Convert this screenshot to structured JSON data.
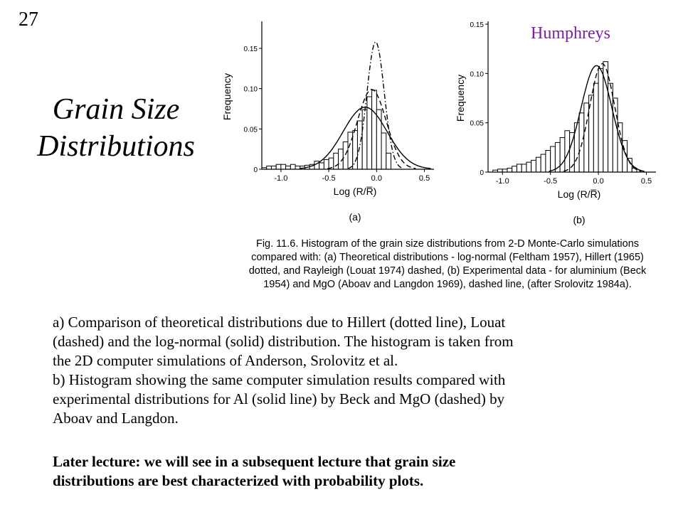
{
  "slide_number": "27",
  "title_lines": [
    "Grain Size",
    "Distributions"
  ],
  "author": "Humphreys",
  "chart_data": [
    {
      "type": "bar",
      "panel": "(a)",
      "title": "",
      "xlabel": "Log (R/R̅)",
      "ylabel": "Frequency",
      "xlim": [
        -1.2,
        0.6
      ],
      "ylim": [
        0,
        0.18
      ],
      "xticks": [
        -1.0,
        -0.5,
        0.0,
        0.5
      ],
      "xtick_labels": [
        "-1.0",
        "-0.5",
        "0.0",
        "0.5"
      ],
      "yticks": [
        0,
        0.05,
        0.1,
        0.15
      ],
      "ytick_labels": [
        "0",
        "0.05",
        "0.10",
        "0.15"
      ],
      "bin_width": 0.05,
      "bin_starts": [
        -1.2,
        -1.15,
        -1.1,
        -1.05,
        -1.0,
        -0.95,
        -0.9,
        -0.85,
        -0.8,
        -0.75,
        -0.7,
        -0.65,
        -0.6,
        -0.55,
        -0.5,
        -0.45,
        -0.4,
        -0.35,
        -0.3,
        -0.25,
        -0.2,
        -0.15,
        -0.1,
        -0.05,
        0.0,
        0.05,
        0.1
      ],
      "values": [
        0.002,
        0.004,
        0.004,
        0.006,
        0.006,
        0.004,
        0.006,
        0.004,
        0.004,
        0.005,
        0.006,
        0.01,
        0.008,
        0.012,
        0.014,
        0.02,
        0.025,
        0.034,
        0.046,
        0.048,
        0.06,
        0.074,
        0.09,
        0.098,
        0.074,
        0.045,
        0.02
      ],
      "curves": [
        {
          "name": "log-normal",
          "style": "solid",
          "mu": -0.12,
          "sigma": 0.23,
          "peak": 0.077
        },
        {
          "name": "Hillert",
          "style": "dash-dot",
          "mu": -0.01,
          "sigma": 0.09,
          "peak": 0.158
        },
        {
          "name": "Rayleigh",
          "style": "dashed",
          "mu": -0.05,
          "sigma": 0.15,
          "peak": 0.099
        }
      ]
    },
    {
      "type": "bar",
      "panel": "(b)",
      "title": "",
      "xlabel": "Log (R/R̅)",
      "ylabel": "Frequency",
      "xlim": [
        -1.15,
        0.6
      ],
      "ylim": [
        0,
        0.15
      ],
      "xticks": [
        -1.0,
        -0.5,
        0.0,
        0.5
      ],
      "xtick_labels": [
        "-1.0",
        "-0.5",
        "0.0",
        "0.5"
      ],
      "yticks": [
        0,
        0.05,
        0.1,
        0.15
      ],
      "ytick_labels": [
        "0",
        "0.05",
        "0.10",
        "0.15"
      ],
      "bin_width": 0.05,
      "bin_starts": [
        -1.1,
        -1.05,
        -1.0,
        -0.95,
        -0.9,
        -0.85,
        -0.8,
        -0.75,
        -0.7,
        -0.65,
        -0.6,
        -0.55,
        -0.5,
        -0.45,
        -0.4,
        -0.35,
        -0.3,
        -0.25,
        -0.2,
        -0.15,
        -0.1,
        -0.05,
        0.0,
        0.05,
        0.1,
        0.15,
        0.2,
        0.25,
        0.3,
        0.35
      ],
      "values": [
        0.002,
        0.003,
        0.003,
        0.004,
        0.006,
        0.008,
        0.008,
        0.01,
        0.012,
        0.015,
        0.018,
        0.022,
        0.026,
        0.03,
        0.035,
        0.042,
        0.04,
        0.05,
        0.06,
        0.07,
        0.078,
        0.09,
        0.105,
        0.112,
        0.09,
        0.075,
        0.05,
        0.032,
        0.014,
        0.004
      ],
      "curves": [
        {
          "name": "Al (Beck)",
          "style": "solid",
          "mu": -0.02,
          "sigma": 0.16,
          "peak": 0.108
        },
        {
          "name": "MgO (Aboav and Langdon)",
          "style": "dashed",
          "mu": 0.04,
          "sigma": 0.13,
          "peak": 0.11
        }
      ]
    }
  ],
  "caption_lines": [
    "Fig. 11.6.    Histogram of the grain size distributions from 2-D Monte-Carlo simulations",
    "compared with: (a) Theoretical distributions - log-normal (Feltham 1957), Hillert (1965)",
    "dotted, and Rayleigh (Louat 1974) dashed, (b) Experimental data - for aluminium (Beck",
    "1954) and MgO (Aboav and Langdon 1969), dashed line, (after Srolovitz 1984a)."
  ],
  "body_lines": [
    "a) Comparison of theoretical distributions due to Hillert (dotted line), Louat",
    "(dashed) and the log-normal (solid) distribution.  The histogram is taken from",
    "the 2D computer simulations of Anderson, Srolovitz et al.",
    "b) Histogram showing the same computer simulation results compared with",
    "experimental distributions for Al (solid line) by Beck and MgO (dashed) by",
    "Aboav and Langdon."
  ],
  "note_lines": [
    "Later lecture: we will see in a subsequent lecture that grain size",
    "distributions are best characterized with probability plots."
  ]
}
